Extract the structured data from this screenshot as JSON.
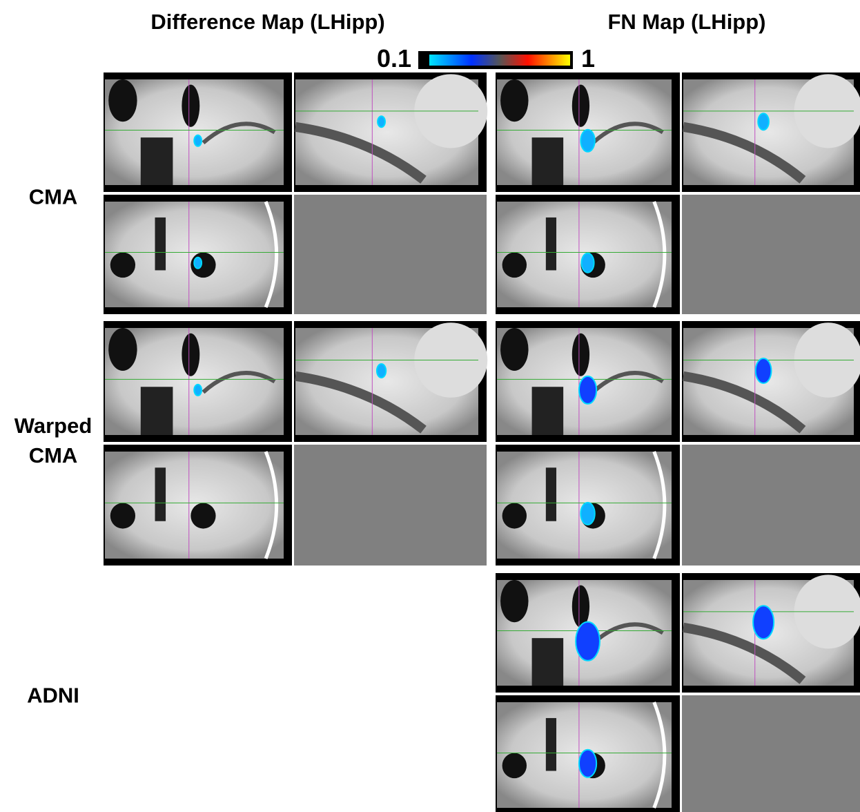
{
  "columns": {
    "left": "Difference Map (LHipp)",
    "right": "FN Map (LHipp)"
  },
  "colorbar": {
    "min": 0.1,
    "max": 1
  },
  "rows": [
    "CMA",
    "Warped CMA",
    "ADNI"
  ]
}
